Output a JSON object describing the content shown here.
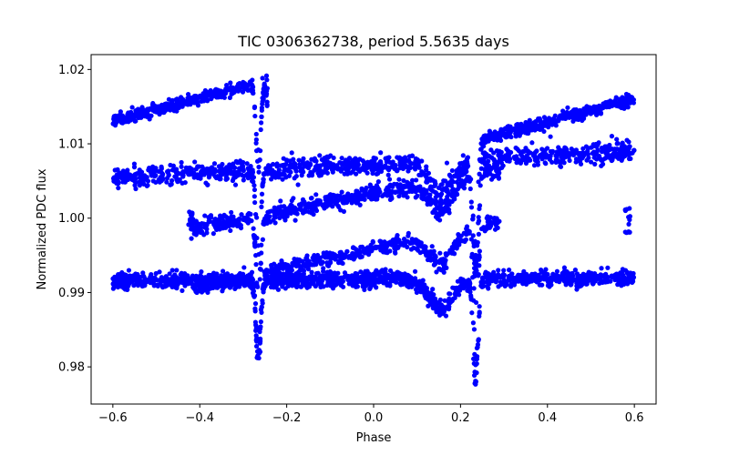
{
  "chart_data": {
    "type": "scatter",
    "title": "TIC 0306362738, period 5.5635 days",
    "xlabel": "Phase",
    "ylabel": "Normalized PDC flux",
    "xlim": [
      -0.65,
      0.65
    ],
    "ylim": [
      0.975,
      1.022
    ],
    "xticks": [
      -0.6,
      -0.4,
      -0.2,
      0.0,
      0.2,
      0.4,
      0.6
    ],
    "xtick_labels": [
      "−0.6",
      "−0.4",
      "−0.2",
      "0.0",
      "0.2",
      "0.4",
      "0.6"
    ],
    "yticks": [
      0.98,
      0.99,
      1.0,
      1.01,
      1.02
    ],
    "ytick_labels": [
      "0.98",
      "0.99",
      "1.00",
      "1.01",
      "1.02"
    ],
    "grid": false,
    "marker_color": "#0000ff",
    "marker_radius_hint": "small-dot",
    "series": [
      {
        "name": "",
        "components": [
          {
            "x_start": -0.6,
            "x_end": -0.25,
            "y_start": 1.013,
            "y_end": 1.0185,
            "scatter": 0.0007,
            "density": 420
          },
          {
            "x_start": 0.24,
            "x_end": 0.6,
            "y_start": 1.0105,
            "y_end": 1.016,
            "scatter": 0.0007,
            "density": 420
          },
          {
            "x_start": -0.6,
            "x_end": 0.6,
            "y_start": 1.0055,
            "y_end": 1.009,
            "scatter": 0.0012,
            "density": 1100
          },
          {
            "x_start": -0.42,
            "x_end": 0.29,
            "y_start": 0.9985,
            "y_end": 1.0065,
            "scatter": 0.001,
            "density": 700
          },
          {
            "x_start": -0.42,
            "x_end": 0.29,
            "y_start": 0.9905,
            "y_end": 0.9995,
            "scatter": 0.0009,
            "density": 650
          },
          {
            "x_start": -0.6,
            "x_end": 0.6,
            "y_start": 0.9915,
            "y_end": 0.992,
            "scatter": 0.0009,
            "density": 1600
          }
        ],
        "dips": [
          {
            "center": -0.265,
            "depth": 0.0125,
            "width": 0.008
          },
          {
            "center": 0.235,
            "depth": 0.0155,
            "width": 0.008
          },
          {
            "center": 0.155,
            "depth": 0.0045,
            "width": 0.04
          }
        ],
        "spikes": [
          {
            "x": -0.25,
            "y_from": 1.015,
            "y_to": 1.0195
          },
          {
            "x": 0.585,
            "y_from": 0.998,
            "y_to": 1.0015
          },
          {
            "x": -0.42,
            "y_from": 0.9985,
            "y_to": 1.0015
          }
        ]
      }
    ]
  }
}
